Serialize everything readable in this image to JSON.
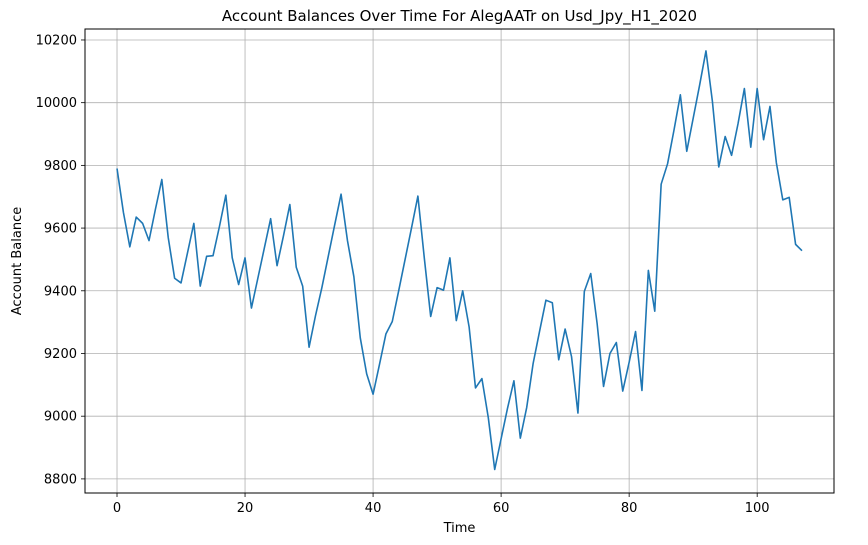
{
  "chart_data": {
    "type": "line",
    "title": "Account Balances Over Time For AlegAATr on Usd_Jpy_H1_2020",
    "xlabel": "Time",
    "ylabel": "Account Balance",
    "xlim": [
      -5,
      112
    ],
    "ylim": [
      8755,
      10235
    ],
    "xticks": [
      0,
      20,
      40,
      60,
      80,
      100
    ],
    "yticks": [
      8800,
      9000,
      9200,
      9400,
      9600,
      9800,
      10000,
      10200
    ],
    "grid": true,
    "series": [
      {
        "color": "#1f77b4",
        "x": [
          0,
          1,
          2,
          3,
          4,
          5,
          6,
          7,
          8,
          9,
          10,
          11,
          12,
          13,
          14,
          15,
          16,
          17,
          18,
          19,
          20,
          21,
          22,
          23,
          24,
          25,
          26,
          27,
          28,
          29,
          30,
          31,
          32,
          33,
          34,
          35,
          36,
          37,
          38,
          39,
          40,
          41,
          42,
          43,
          44,
          45,
          46,
          47,
          48,
          49,
          50,
          51,
          52,
          53,
          54,
          55,
          56,
          57,
          58,
          59,
          60,
          61,
          62,
          63,
          64,
          65,
          66,
          67,
          68,
          69,
          70,
          71,
          72,
          73,
          74,
          75,
          76,
          77,
          78,
          79,
          80,
          81,
          82,
          83,
          84,
          85,
          86,
          87,
          88,
          89,
          90,
          91,
          92,
          93,
          94,
          95,
          96,
          97,
          98,
          99,
          100,
          101,
          102,
          103,
          104,
          105,
          106,
          107
        ],
        "values": [
          9790,
          9650,
          9540,
          9635,
          9615,
          9560,
          9660,
          9755,
          9570,
          9440,
          9425,
          9520,
          9615,
          9415,
          9510,
          9512,
          9605,
          9705,
          9505,
          9420,
          9505,
          9345,
          9440,
          9535,
          9630,
          9480,
          9575,
          9675,
          9475,
          9415,
          9220,
          9320,
          9410,
          9510,
          9610,
          9708,
          9560,
          9445,
          9250,
          9135,
          9070,
          9165,
          9262,
          9302,
          9400,
          9500,
          9600,
          9702,
          9505,
          9318,
          9410,
          9402,
          9505,
          9305,
          9400,
          9285,
          9090,
          9120,
          8995,
          8830,
          8928,
          9025,
          9113,
          8930,
          9028,
          9168,
          9270,
          9370,
          9362,
          9180,
          9278,
          9190,
          9010,
          9398,
          9455,
          9295,
          9095,
          9200,
          9235,
          9080,
          9172,
          9270,
          9082,
          9465,
          9335,
          9740,
          9805,
          9912,
          10025,
          9845,
          9950,
          10055,
          10165,
          10005,
          9795,
          9892,
          9832,
          9932,
          10045,
          9858,
          10045,
          9882,
          9988,
          9808,
          9690,
          9698,
          9548,
          9528
        ]
      }
    ]
  }
}
